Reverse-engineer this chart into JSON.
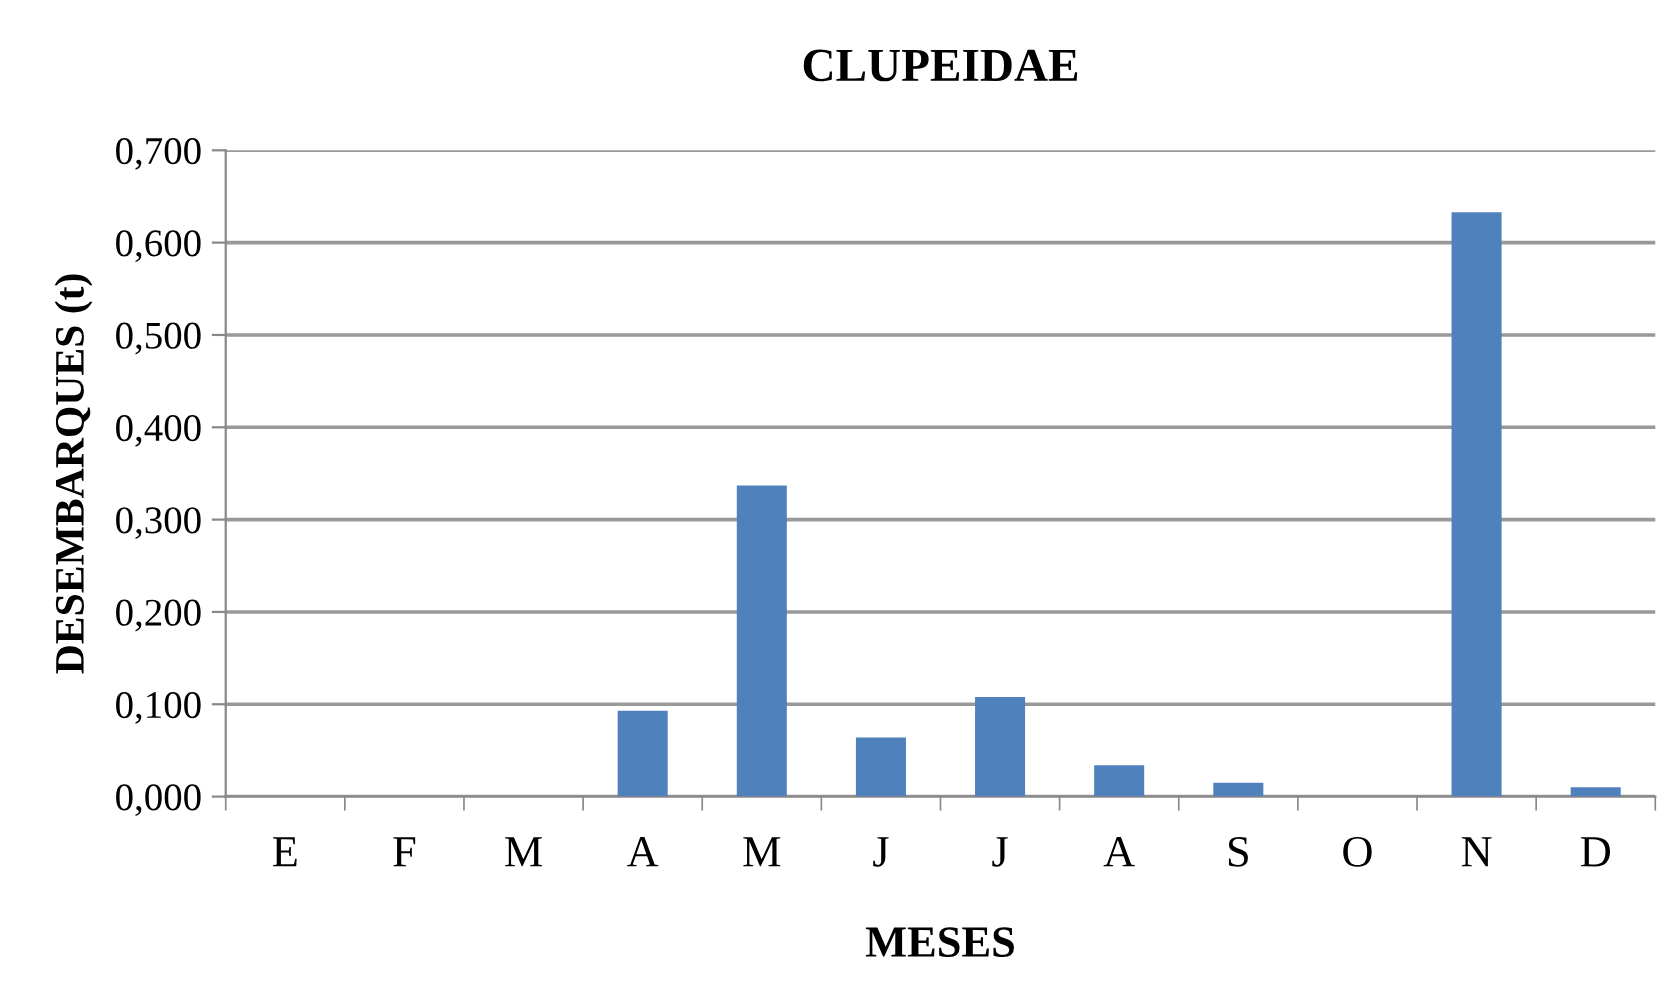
{
  "chart_data": {
    "type": "bar",
    "title": "CLUPEIDAE",
    "xlabel": "MESES",
    "ylabel": "DESEMBARQUES (t)",
    "categories": [
      "E",
      "F",
      "M",
      "A",
      "M",
      "J",
      "J",
      "A",
      "S",
      "O",
      "N",
      "D"
    ],
    "values": [
      0,
      0,
      0,
      0.093,
      0.337,
      0.064,
      0.108,
      0.034,
      0.015,
      0,
      0.633,
      0.01
    ],
    "color": "#4f81bd",
    "ylim": [
      0,
      0.7
    ],
    "yticks": [
      {
        "value": 0,
        "label": "0,000"
      },
      {
        "value": 0.1,
        "label": "0,100"
      },
      {
        "value": 0.2,
        "label": "0,200"
      },
      {
        "value": 0.3,
        "label": "0,300"
      },
      {
        "value": 0.4,
        "label": "0,400"
      },
      {
        "value": 0.5,
        "label": "0,500"
      },
      {
        "value": 0.6,
        "label": "0,600"
      },
      {
        "value": 0.7,
        "label": "0,700"
      }
    ],
    "grid": "y"
  }
}
